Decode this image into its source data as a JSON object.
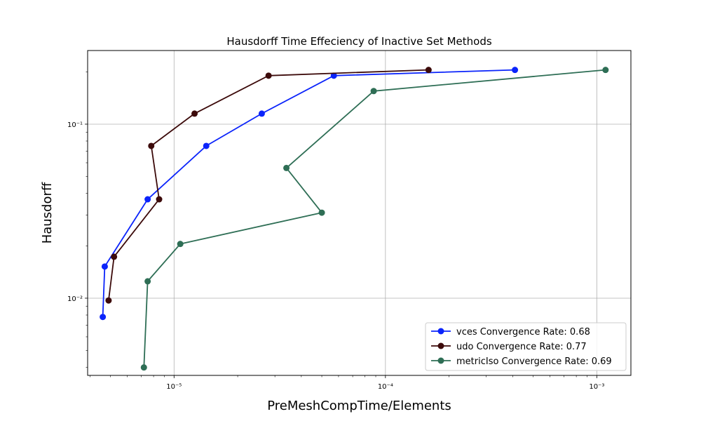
{
  "chart_data": {
    "type": "line",
    "title": "Hausdorff Time Effeciency of Inactive Set Methods",
    "xlabel": "PreMeshCompTime/Elements",
    "ylabel": "Hausdorff",
    "xscale": "log",
    "yscale": "log",
    "xlim": [
      3.9e-06,
      0.00145
    ],
    "ylim": [
      0.0036,
      0.265
    ],
    "xticks": [
      {
        "value": 1e-05,
        "label": "10⁻⁵"
      },
      {
        "value": 0.0001,
        "label": "10⁻⁴"
      },
      {
        "value": 0.001,
        "label": "10⁻³"
      }
    ],
    "yticks": [
      {
        "value": 0.01,
        "label": "10⁻²"
      },
      {
        "value": 0.1,
        "label": "10⁻¹"
      }
    ],
    "grid": true,
    "legend_position": "lower-right",
    "series": [
      {
        "name": "vces Convergence Rate: 0.68",
        "color": "#0b24fb",
        "x": [
          4.6e-06,
          4.7e-06,
          7.5e-06,
          1.42e-05,
          2.6e-05,
          5.7e-05,
          0.00041
        ],
        "y": [
          0.0078,
          0.0152,
          0.037,
          0.075,
          0.115,
          0.19,
          0.205
        ]
      },
      {
        "name": "udo Convergence Rate: 0.77",
        "color": "#3c0a0a",
        "x": [
          4.9e-06,
          5.2e-06,
          8.5e-06,
          7.8e-06,
          1.25e-05,
          2.8e-05,
          0.00016
        ],
        "y": [
          0.0097,
          0.0173,
          0.037,
          0.075,
          0.115,
          0.19,
          0.205
        ]
      },
      {
        "name": "metricIso Convergence Rate: 0.69",
        "color": "#2e6e55",
        "x": [
          7.2e-06,
          7.5e-06,
          1.07e-05,
          5e-05,
          3.4e-05,
          8.8e-05,
          0.0011
        ],
        "y": [
          0.004,
          0.0125,
          0.0205,
          0.031,
          0.056,
          0.155,
          0.205
        ]
      }
    ]
  }
}
